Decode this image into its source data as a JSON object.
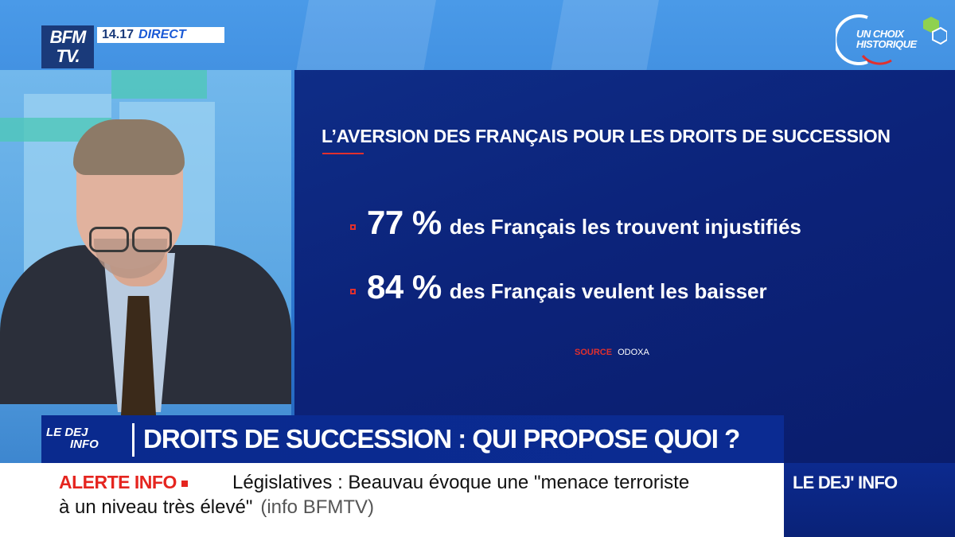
{
  "channel": {
    "logo_line1": "BFM",
    "logo_line2": "TV.",
    "time": "14.17",
    "live_label": "DIRECT",
    "badge_line1": "UN CHOIX",
    "badge_line2": "HISTORIQUE"
  },
  "info_panel": {
    "title": "L’AVERSION DES FRANÇAIS POUR LES DROITS DE SUCCESSION",
    "stats": [
      {
        "value": "77 %",
        "text": "des Français les trouvent injustifiés"
      },
      {
        "value": "84 %",
        "text": "des Français veulent les baisser"
      }
    ],
    "source_label": "SOURCE",
    "source_value": "ODOXA"
  },
  "headline": {
    "show_line1": "LE DEJ",
    "show_line2": "INFO",
    "text": "DROITS DE SUCCESSION : QUI PROPOSE QUOI ?"
  },
  "ticker": {
    "alert_label": "ALERTE INFO",
    "line1": "Législatives : Beauvau évoque une \"menace terroriste",
    "line2": "à un niveau très élevé\"",
    "credit": "(info BFMTV)"
  },
  "program": {
    "label": "LE DEJ' INFO"
  },
  "colors": {
    "accent_red": "#e0302e",
    "panel_navy": "#0c237a",
    "ticker_bg": "#ffffff"
  }
}
